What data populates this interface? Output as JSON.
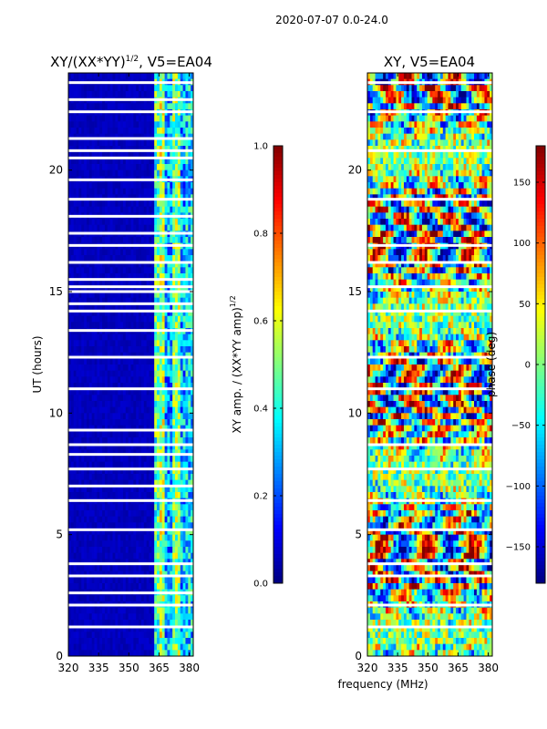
{
  "figure": {
    "suptitle": "2020-07-07 0.0-24.0",
    "shared_xlabel": "frequency (MHz)"
  },
  "chart_data": [
    {
      "type": "heatmap",
      "title_parts": {
        "prefix": "XY/(XX*YY)",
        "exponent": "1/2",
        "suffix": ", V5=EA04"
      },
      "ylabel": "UT (hours)",
      "xlim": [
        320,
        382
      ],
      "ylim": [
        0,
        24
      ],
      "xticks": [
        320,
        335,
        350,
        365,
        380
      ],
      "yticks": [
        0,
        5,
        10,
        15,
        20
      ],
      "colorbar": {
        "label_prefix": "XY amp. / (XX*YY amp)",
        "label_exponent": "1/2",
        "range": [
          0.0,
          1.0
        ],
        "ticks": [
          "0.0",
          "0.2",
          "0.4",
          "0.6",
          "0.8",
          "1.0"
        ],
        "tick_values": [
          0.0,
          0.2,
          0.4,
          0.6,
          0.8,
          1.0
        ],
        "colormap": "jet"
      },
      "frequency_bands": [
        {
          "from": 320,
          "to": 362,
          "level": 0.05
        },
        {
          "from": 362,
          "to": 365,
          "level": 0.45
        },
        {
          "from": 365,
          "to": 368,
          "level": 0.55
        },
        {
          "from": 368,
          "to": 372,
          "level": 0.3
        },
        {
          "from": 372,
          "to": 375,
          "level": 0.5
        },
        {
          "from": 375,
          "to": 378,
          "level": 0.3
        },
        {
          "from": 378,
          "to": 382,
          "level": 0.35
        }
      ],
      "flagged_hours": [
        1.2,
        2.1,
        2.6,
        3.3,
        3.8,
        5.2,
        6.4,
        7.0,
        7.7,
        8.3,
        8.7,
        9.3,
        11.0,
        12.3,
        13.4,
        14.2,
        14.5,
        15.0,
        15.2,
        15.5,
        16.2,
        16.9,
        17.4,
        18.1,
        18.8,
        19.6,
        20.5,
        20.8,
        21.3,
        22.4,
        22.9,
        23.6
      ]
    },
    {
      "type": "heatmap",
      "title": "XY, V5=EA04",
      "xlim": [
        320,
        382
      ],
      "ylim": [
        0,
        24
      ],
      "xticks": [
        320,
        335,
        350,
        365,
        380
      ],
      "yticks": [
        0,
        5,
        10,
        15,
        20
      ],
      "colorbar": {
        "label": "phase (deg)",
        "range": [
          -180,
          180
        ],
        "ticks": [
          "−150",
          "−100",
          "−50",
          "0",
          "50",
          "100",
          "150"
        ],
        "tick_values": [
          -150,
          -100,
          -50,
          0,
          50,
          100,
          150
        ],
        "colormap": "jet"
      },
      "flagged_hours": [
        1.2,
        2.1,
        3.3,
        3.8,
        5.2,
        6.4,
        7.7,
        8.7,
        11.0,
        12.3,
        14.2,
        15.2,
        16.2,
        16.9,
        18.8,
        20.8,
        22.4,
        23.6
      ]
    }
  ]
}
